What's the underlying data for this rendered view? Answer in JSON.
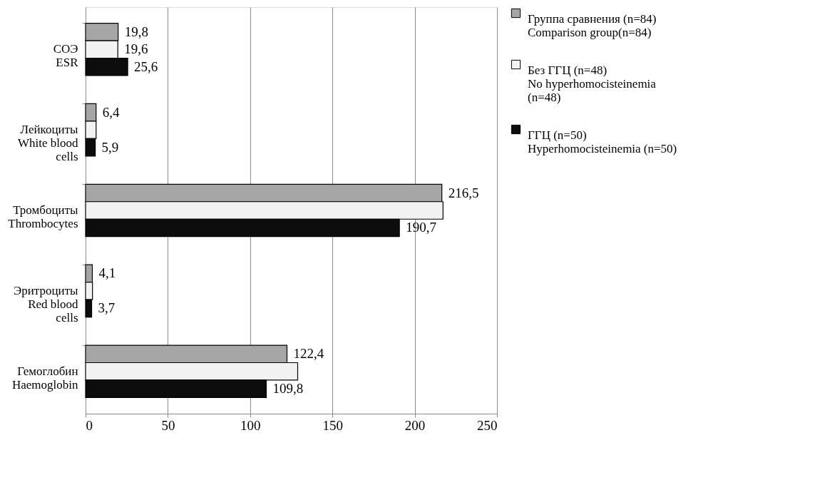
{
  "chart_data": {
    "type": "bar",
    "orientation": "horizontal",
    "categories": [
      "СОЭ\nESR",
      "Лейкоциты\nWhite blood\ncells",
      "Тромбоциты\nThrombocytes",
      "Эритроциты\nRed blood\ncells",
      "Гемоглобин\nHaemoglobin"
    ],
    "series": [
      {
        "name": "Группа сравнения (n=84)\nComparison group(n=84)",
        "color": "#a6a6a6",
        "values": [
          19.8,
          6.4,
          216.5,
          4.1,
          122.4
        ],
        "value_labels": [
          "19,8",
          "6,4",
          "216,5",
          "4,1",
          "122,4"
        ]
      },
      {
        "name": "Без ГГЦ (n=48)\nNo hyperhomocisteinemia\n(n=48)",
        "color": "#f2f2f2",
        "values": [
          19.6,
          6.4,
          217.2,
          4.2,
          128.9
        ],
        "value_labels": [
          "19,6",
          null,
          null,
          null,
          null
        ]
      },
      {
        "name": "ГГЦ (n=50)\nHyperhomocisteinemia (n=50)",
        "color": "#0d0d0d",
        "values": [
          25.6,
          5.9,
          190.7,
          3.7,
          109.8
        ],
        "value_labels": [
          "25,6",
          "5,9",
          "190,7",
          "3,7",
          "109,8"
        ]
      }
    ],
    "xlim": [
      0,
      250
    ],
    "xticks": [
      0,
      50,
      100,
      150,
      200,
      250
    ],
    "grid": "x",
    "legend": "right"
  }
}
